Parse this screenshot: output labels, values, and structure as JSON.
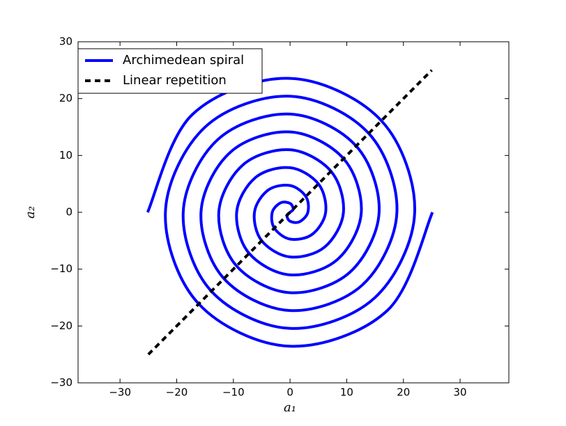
{
  "chart_data": {
    "type": "line",
    "xlabel": "a₁",
    "ylabel": "a₂",
    "xlim": [
      -37.4,
      38.6
    ],
    "ylim": [
      -30,
      30
    ],
    "xticks": [
      {
        "value": -30,
        "label": "−30"
      },
      {
        "value": -20,
        "label": "−20"
      },
      {
        "value": -10,
        "label": "−10"
      },
      0,
      10,
      20,
      30
    ],
    "yticks": [
      {
        "value": -30,
        "label": "−30"
      },
      {
        "value": -20,
        "label": "−20"
      },
      {
        "value": -10,
        "label": "−10"
      },
      0,
      10,
      20,
      30
    ],
    "legend": "upper left",
    "series": [
      {
        "name": "Archimedean spiral",
        "color": "#0000ff",
        "style": "solid",
        "x": [
          -25.13,
          -17.22,
          0,
          16.11,
          21.99,
          14.99,
          0,
          -13.88,
          -18.85,
          -12.77,
          0,
          11.66,
          15.71,
          10.55,
          0,
          -9.44,
          -12.57,
          -8.33,
          0,
          7.22,
          9.42,
          6.11,
          0,
          -5.0,
          -6.28,
          -3.89,
          0,
          2.78,
          3.14,
          1.67,
          0,
          -0.56,
          0,
          0.56,
          0,
          -1.67,
          -3.14,
          -2.78,
          0,
          3.89,
          6.28,
          5.0,
          0,
          -6.11,
          -9.42,
          -7.22,
          0,
          8.33,
          12.57,
          9.44,
          0,
          -10.55,
          -15.71,
          -11.66,
          0,
          12.77,
          18.85,
          13.88,
          0,
          -14.99,
          -21.99,
          -16.11,
          0,
          17.22,
          25.13
        ],
        "y": [
          0,
          17.22,
          23.56,
          16.11,
          0,
          -14.99,
          -20.42,
          -13.88,
          0,
          12.77,
          17.28,
          11.66,
          0,
          -10.55,
          -14.14,
          -9.44,
          0,
          8.33,
          11.0,
          7.22,
          0,
          -6.11,
          -7.85,
          -5.0,
          0,
          3.89,
          4.71,
          2.78,
          0,
          -1.67,
          -1.57,
          -0.56,
          0,
          0.56,
          1.57,
          1.67,
          0,
          -2.78,
          -4.71,
          -3.89,
          0,
          5.0,
          7.85,
          6.11,
          0,
          -7.22,
          -11.0,
          -8.33,
          0,
          9.44,
          14.14,
          10.55,
          0,
          -11.66,
          -17.28,
          -12.77,
          0,
          13.88,
          20.42,
          14.99,
          0,
          -16.11,
          -23.56,
          -17.22,
          0
        ]
      },
      {
        "name": "Linear repetition",
        "color": "#000000",
        "style": "dashed",
        "x": [
          -25,
          25
        ],
        "y": [
          -25,
          25
        ]
      }
    ]
  }
}
